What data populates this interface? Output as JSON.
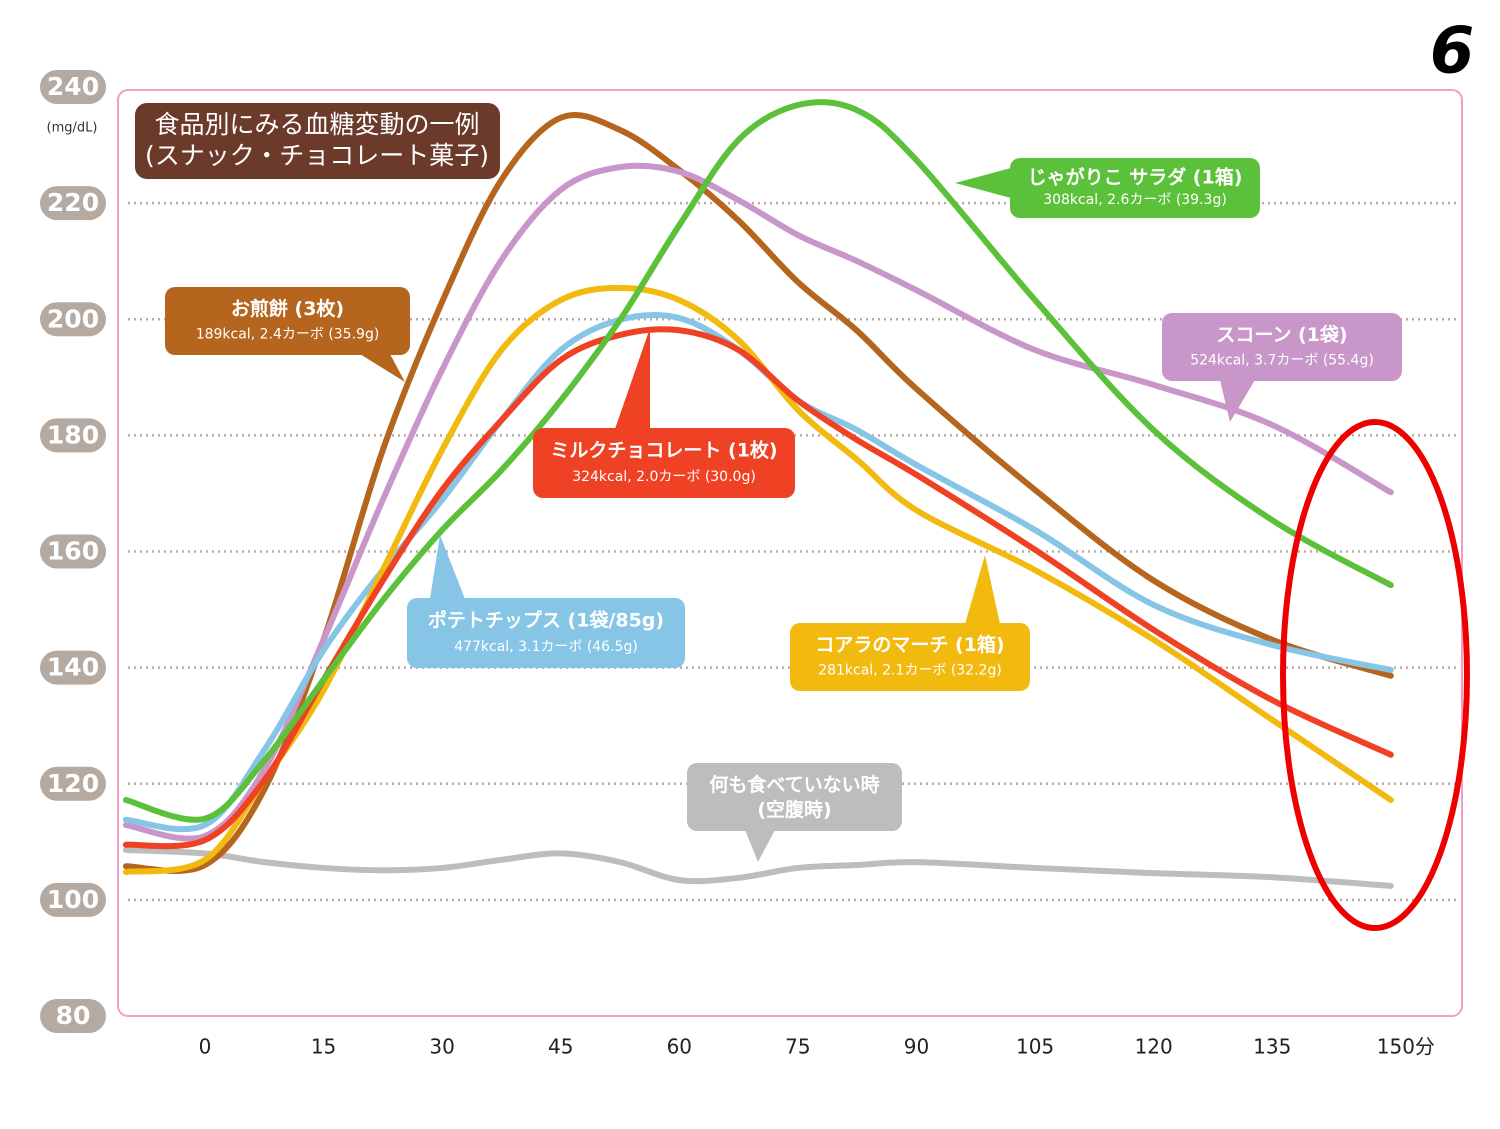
{
  "chart_data": {
    "type": "line",
    "title": "食品別にみる血糖変動の一例",
    "subtitle": "(スナック・チョコレート菓子)",
    "y_unit": "(mg/dL)",
    "annotation": "6",
    "x": [
      -10,
      0,
      7.5,
      15,
      22.5,
      30,
      37.5,
      45,
      52.5,
      60,
      67.5,
      75,
      82.5,
      90,
      105,
      120,
      135,
      150
    ],
    "xlim": [
      -11,
      159
    ],
    "xticks": [
      0,
      15,
      30,
      45,
      60,
      75,
      90,
      105,
      120,
      135,
      {
        "value": 150,
        "label": "150分"
      }
    ],
    "ylim": [
      80,
      240
    ],
    "yticks": [
      80,
      100,
      120,
      140,
      160,
      180,
      200,
      220,
      240
    ],
    "grid": true,
    "series": [
      {
        "name": "何も食べていない時",
        "detail": "(空腹時)",
        "color": "#bdbdbd",
        "values": [
          108.6,
          108,
          106.5,
          105.5,
          105.1,
          105.5,
          106.9,
          108,
          106.5,
          103.4,
          103.8,
          105.5,
          106,
          106.5,
          105.5,
          104.6,
          103.9,
          102.4
        ]
      },
      {
        "name": "お煎餅 (3枚)",
        "detail": "189kcal, 2.4カーボ (35.9g)",
        "color": "#b5651d",
        "values": [
          105.8,
          106,
          119,
          144.8,
          177.5,
          203,
          224,
          234.7,
          232.6,
          225.7,
          217,
          206.4,
          198,
          188,
          170.6,
          155,
          144.8,
          138.6
        ]
      },
      {
        "name": "スコーン (1袋)",
        "detail": "524kcal, 3.7カーボ (55.4g)",
        "color": "#c896c8",
        "values": [
          112.9,
          111,
          122.4,
          144.8,
          168.9,
          191.3,
          210.2,
          222.3,
          226.2,
          225.4,
          220.5,
          214.5,
          210,
          205,
          194.7,
          188.7,
          181.8,
          170.2
        ]
      },
      {
        "name": "ポテトチップス (1袋/85g)",
        "detail": "477kcal, 3.1カーボ (46.5g)",
        "color": "#86c5e6",
        "values": [
          113.8,
          112.9,
          125.8,
          143,
          156.8,
          168.9,
          182.6,
          194.7,
          199.9,
          200.2,
          194.7,
          186,
          180.9,
          174.9,
          163.7,
          150.8,
          143.9,
          139.6
        ]
      },
      {
        "name": "コアラのマーチ (1箱)",
        "detail": "281kcal, 2.1カーボ (32.2g)",
        "color": "#f2b90f",
        "values": [
          104.8,
          106.9,
          120.6,
          136.1,
          156.8,
          177.5,
          194.7,
          203.3,
          205.4,
          203.3,
          196.4,
          184.4,
          175.8,
          167.1,
          156.8,
          144.8,
          131,
          117.2
        ]
      },
      {
        "name": "ミルクチョコレート (1枚)",
        "detail": "324kcal, 2.0カーボ (30.0g)",
        "color": "#ef4123",
        "values": [
          109.5,
          110.3,
          120.6,
          137.9,
          155,
          170.6,
          182.6,
          193,
          197.3,
          198.1,
          194.7,
          186,
          179.2,
          173.2,
          160.3,
          146.5,
          134.4,
          125
        ]
      },
      {
        "name": "じゃがりこ サラダ (1箱)",
        "detail": "308kcal, 2.6カーボ (39.3g)",
        "color": "#5cc13a",
        "values": [
          117.2,
          114,
          124,
          137.9,
          151.6,
          163.7,
          174,
          186,
          199.9,
          216.2,
          230.9,
          236.9,
          236,
          227.4,
          203.3,
          180.9,
          165.4,
          154.2
        ]
      }
    ]
  }
}
